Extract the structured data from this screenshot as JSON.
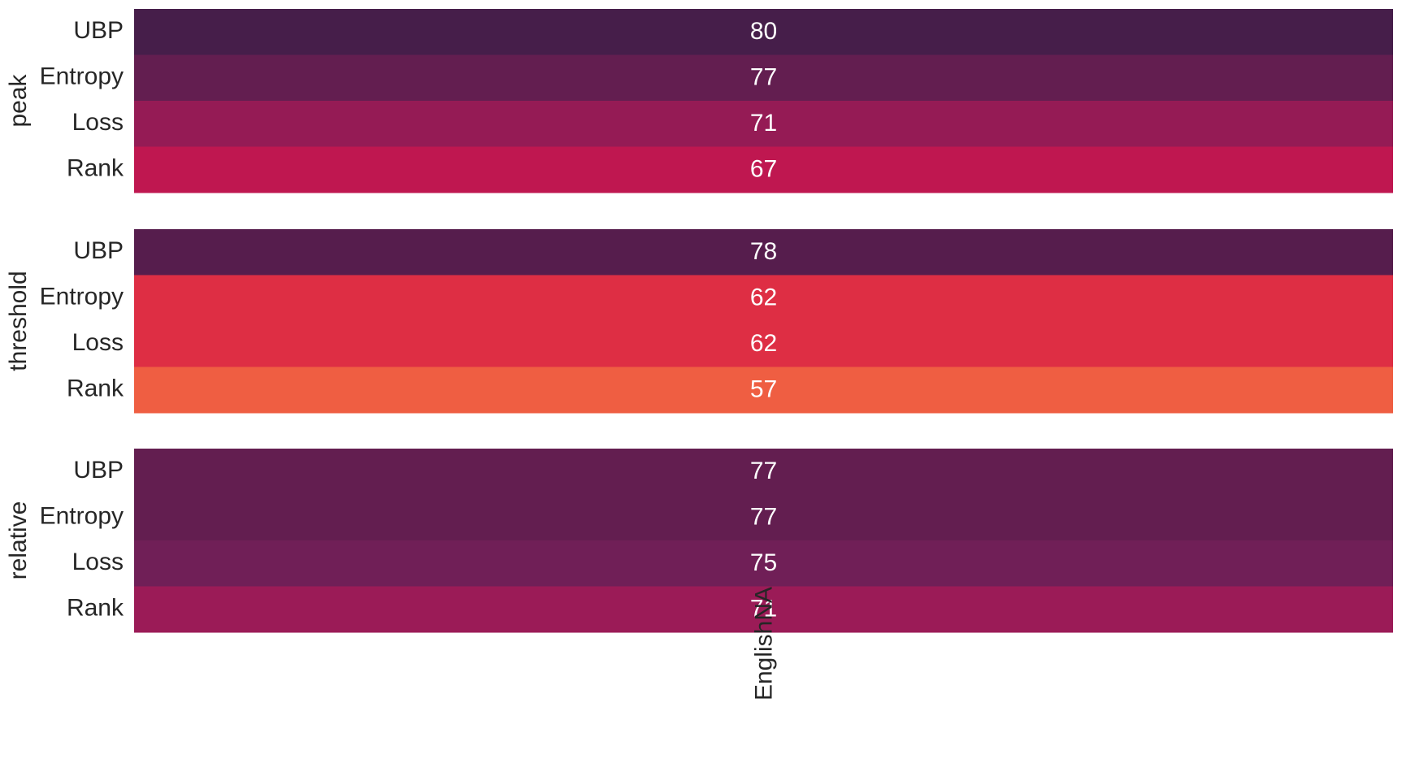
{
  "chart_data": {
    "type": "heatmap",
    "x_categories": [
      "EnglishNA"
    ],
    "groups": [
      {
        "name": "peak",
        "rows": [
          "UBP",
          "Entropy",
          "Loss",
          "Rank"
        ],
        "values": [
          80,
          77,
          71,
          67
        ],
        "colors": [
          "#461e4a",
          "#631e50",
          "#951b55",
          "#bf1750"
        ]
      },
      {
        "name": "threshold",
        "rows": [
          "UBP",
          "Entropy",
          "Loss",
          "Rank"
        ],
        "values": [
          78,
          62,
          62,
          57
        ],
        "colors": [
          "#561d4d",
          "#de2e44",
          "#de2e44",
          "#ef5e42"
        ]
      },
      {
        "name": "relative",
        "rows": [
          "UBP",
          "Entropy",
          "Loss",
          "Rank"
        ],
        "values": [
          77,
          77,
          75,
          71
        ],
        "colors": [
          "#631e50",
          "#631e50",
          "#701f57",
          "#9b1b57"
        ]
      }
    ]
  }
}
